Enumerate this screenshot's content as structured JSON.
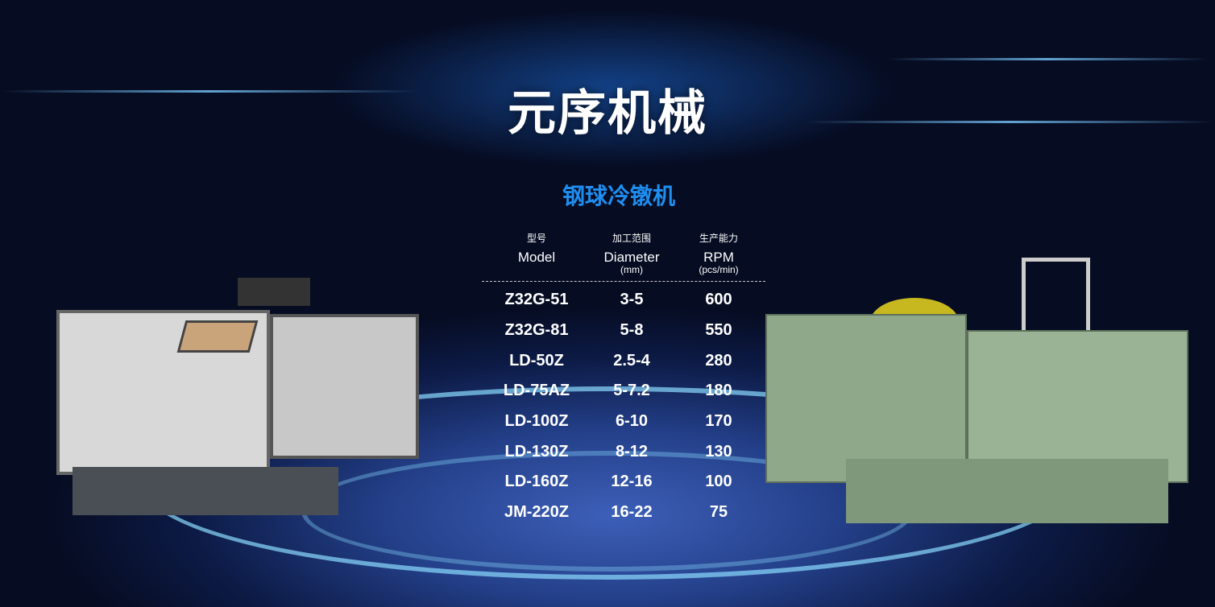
{
  "title": "元序机械",
  "subtitle": "钢球冷镦机",
  "table": {
    "headers": [
      {
        "zh": "型号",
        "en": "Model",
        "unit": ""
      },
      {
        "zh": "加工范围",
        "en": "Diameter",
        "unit": "(mm)"
      },
      {
        "zh": "生产能力",
        "en": "RPM",
        "unit": "(pcs/min)"
      }
    ],
    "rows": [
      [
        "Z32G-51",
        "3-5",
        "600"
      ],
      [
        "Z32G-81",
        "5-8",
        "550"
      ],
      [
        "LD-50Z",
        "2.5-4",
        "280"
      ],
      [
        "LD-75AZ",
        "5-7.2",
        "180"
      ],
      [
        "LD-100Z",
        "6-10",
        "170"
      ],
      [
        "LD-130Z",
        "8-12",
        "130"
      ],
      [
        "LD-160Z",
        "12-16",
        "100"
      ],
      [
        "JM-220Z",
        "16-22",
        "75"
      ]
    ]
  },
  "colors": {
    "accent": "#1e8ef0",
    "background": "#0c1a45"
  }
}
